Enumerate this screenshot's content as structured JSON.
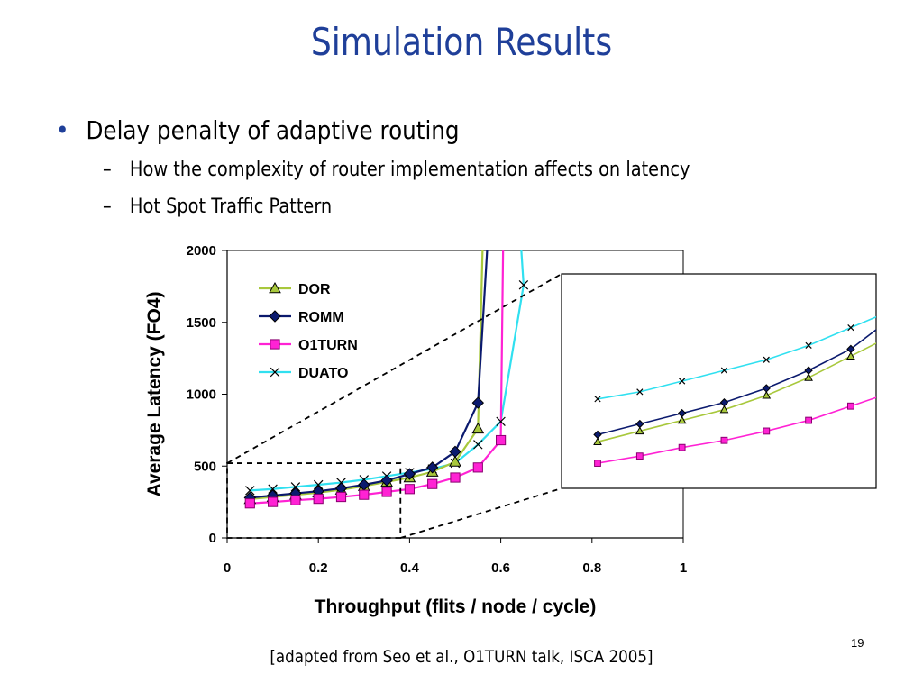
{
  "slide": {
    "title": "Simulation Results",
    "bullet": "Delay penalty of adaptive routing",
    "subbullets": [
      "How the complexity of router implementation affects on latency",
      "Hot Spot Traffic Pattern"
    ],
    "citation": "[adapted from Seo et al., O1TURN talk, ISCA 2005]",
    "page_number": "19"
  },
  "chart_data": {
    "type": "line",
    "xlabel": "Throughput (flits / node / cycle)",
    "ylabel": "Average Latency (FO4)",
    "xlim": [
      0,
      1
    ],
    "ylim": [
      0,
      2000
    ],
    "xticks": [
      "0",
      "0.2",
      "0.4",
      "0.6",
      "0.8",
      "1"
    ],
    "yticks": [
      "0",
      "500",
      "1000",
      "1500",
      "2000"
    ],
    "legend_position": "top-left",
    "inset_zoom": {
      "x_range": [
        0,
        0.38
      ],
      "y_range": [
        0,
        520
      ]
    },
    "series": [
      {
        "name": "DOR",
        "color": "#a8c83c",
        "marker": "triangle",
        "x": [
          0.05,
          0.1,
          0.15,
          0.2,
          0.25,
          0.3,
          0.35,
          0.4,
          0.45,
          0.5,
          0.55,
          0.56
        ],
        "y": [
          270,
          285,
          300,
          315,
          335,
          360,
          390,
          420,
          460,
          530,
          760,
          2000
        ]
      },
      {
        "name": "ROMM",
        "color": "#0b1a6e",
        "marker": "diamond",
        "x": [
          0.05,
          0.1,
          0.15,
          0.2,
          0.25,
          0.3,
          0.35,
          0.4,
          0.45,
          0.5,
          0.55,
          0.57
        ],
        "y": [
          280,
          295,
          310,
          325,
          345,
          370,
          400,
          445,
          490,
          600,
          940,
          2000
        ]
      },
      {
        "name": "O1TURN",
        "color": "#ff22d4",
        "marker": "square",
        "x": [
          0.05,
          0.1,
          0.15,
          0.2,
          0.25,
          0.3,
          0.35,
          0.4,
          0.45,
          0.5,
          0.55,
          0.6,
          0.605
        ],
        "y": [
          240,
          250,
          262,
          272,
          285,
          300,
          320,
          340,
          375,
          420,
          490,
          680,
          2000
        ]
      },
      {
        "name": "DUATO",
        "color": "#30e0f0",
        "marker": "x",
        "x": [
          0.05,
          0.1,
          0.15,
          0.2,
          0.25,
          0.3,
          0.35,
          0.4,
          0.45,
          0.5,
          0.55,
          0.6,
          0.65,
          0.645
        ],
        "y": [
          330,
          340,
          355,
          370,
          385,
          405,
          430,
          455,
          480,
          520,
          650,
          810,
          1760,
          2000
        ]
      }
    ]
  }
}
